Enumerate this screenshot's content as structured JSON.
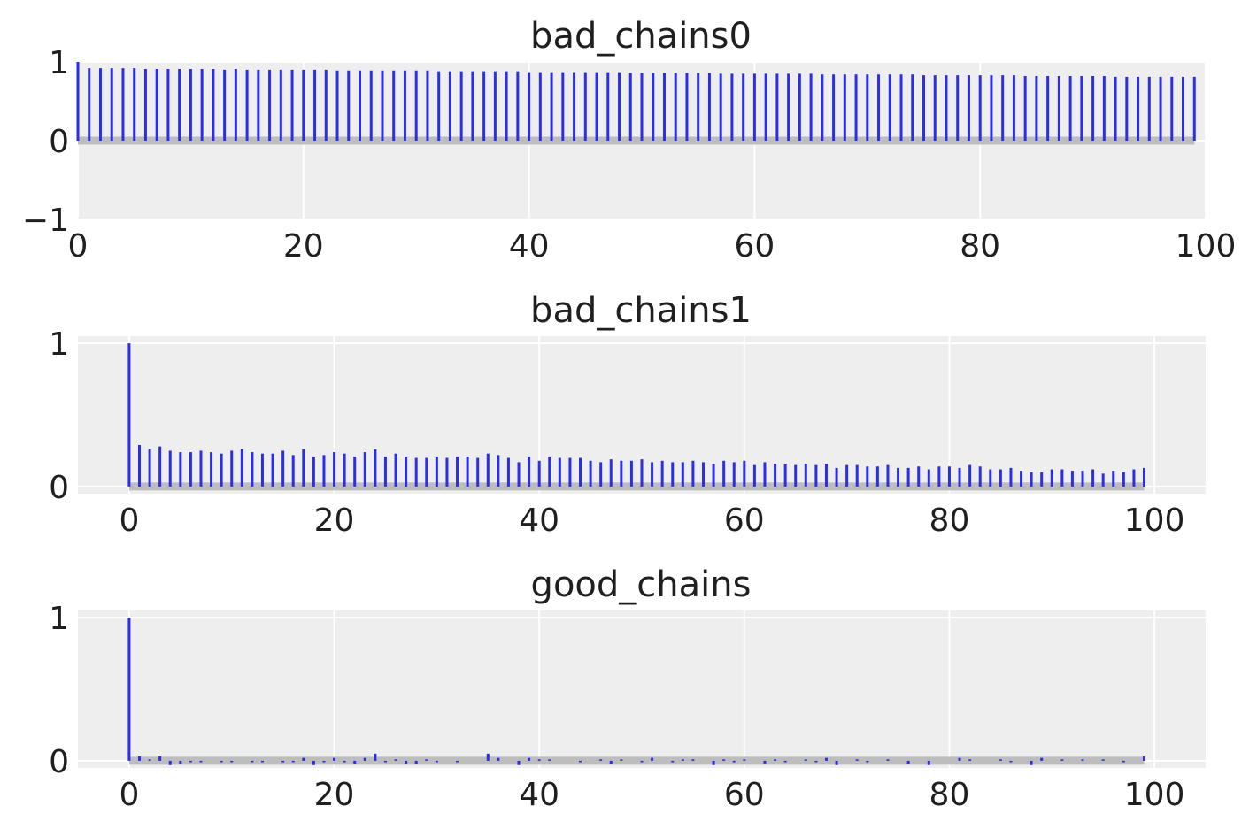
{
  "chart_data": [
    {
      "type": "bar",
      "title": "bad_chains0",
      "xlabel": "",
      "ylabel": "",
      "xlim": [
        0,
        100
      ],
      "ylim": [
        -1,
        1
      ],
      "xticks": [
        0,
        20,
        40,
        60,
        80,
        100
      ],
      "yticks": [
        -1,
        0,
        1
      ],
      "ytick_labels": [
        "−1",
        "0",
        "1"
      ],
      "grid": true,
      "lag_start": 0,
      "values": [
        1.0,
        0.92,
        0.92,
        0.92,
        0.92,
        0.92,
        0.91,
        0.91,
        0.91,
        0.91,
        0.91,
        0.91,
        0.91,
        0.9,
        0.91,
        0.9,
        0.9,
        0.9,
        0.9,
        0.9,
        0.9,
        0.9,
        0.9,
        0.89,
        0.89,
        0.89,
        0.89,
        0.89,
        0.89,
        0.89,
        0.89,
        0.89,
        0.88,
        0.88,
        0.88,
        0.88,
        0.88,
        0.88,
        0.88,
        0.88,
        0.87,
        0.87,
        0.87,
        0.87,
        0.87,
        0.87,
        0.87,
        0.87,
        0.87,
        0.86,
        0.86,
        0.86,
        0.86,
        0.86,
        0.86,
        0.86,
        0.86,
        0.85,
        0.85,
        0.85,
        0.85,
        0.85,
        0.85,
        0.85,
        0.85,
        0.85,
        0.84,
        0.84,
        0.84,
        0.84,
        0.84,
        0.84,
        0.84,
        0.84,
        0.84,
        0.83,
        0.83,
        0.83,
        0.83,
        0.83,
        0.83,
        0.83,
        0.83,
        0.83,
        0.82,
        0.82,
        0.82,
        0.82,
        0.82,
        0.82,
        0.82,
        0.82,
        0.81,
        0.81,
        0.81,
        0.81,
        0.81,
        0.81,
        0.81,
        0.81
      ]
    },
    {
      "type": "bar",
      "title": "bad_chains1",
      "xlabel": "",
      "ylabel": "",
      "xlim": [
        -5,
        105
      ],
      "ylim": [
        -0.05,
        1.05
      ],
      "xticks": [
        0,
        20,
        40,
        60,
        80,
        100
      ],
      "yticks": [
        0,
        1
      ],
      "ytick_labels": [
        "0",
        "1"
      ],
      "grid": true,
      "lag_start": 0,
      "values": [
        1.0,
        0.29,
        0.26,
        0.28,
        0.25,
        0.24,
        0.24,
        0.25,
        0.24,
        0.23,
        0.25,
        0.26,
        0.24,
        0.23,
        0.23,
        0.25,
        0.22,
        0.26,
        0.21,
        0.22,
        0.24,
        0.23,
        0.21,
        0.24,
        0.26,
        0.21,
        0.23,
        0.21,
        0.2,
        0.2,
        0.21,
        0.2,
        0.21,
        0.21,
        0.2,
        0.23,
        0.22,
        0.2,
        0.17,
        0.21,
        0.18,
        0.21,
        0.2,
        0.2,
        0.2,
        0.18,
        0.17,
        0.19,
        0.18,
        0.18,
        0.19,
        0.17,
        0.18,
        0.17,
        0.17,
        0.18,
        0.17,
        0.16,
        0.18,
        0.17,
        0.18,
        0.15,
        0.17,
        0.16,
        0.16,
        0.15,
        0.16,
        0.15,
        0.16,
        0.13,
        0.15,
        0.15,
        0.14,
        0.14,
        0.15,
        0.13,
        0.13,
        0.14,
        0.12,
        0.14,
        0.14,
        0.13,
        0.15,
        0.14,
        0.12,
        0.12,
        0.13,
        0.11,
        0.1,
        0.1,
        0.12,
        0.12,
        0.11,
        0.11,
        0.12,
        0.09,
        0.11,
        0.1,
        0.12,
        0.13
      ]
    },
    {
      "type": "bar",
      "title": "good_chains",
      "xlabel": "",
      "ylabel": "",
      "xlim": [
        -5,
        105
      ],
      "ylim": [
        -0.05,
        1.05
      ],
      "xticks": [
        0,
        20,
        40,
        60,
        80,
        100
      ],
      "yticks": [
        0,
        1
      ],
      "ytick_labels": [
        "0",
        "1"
      ],
      "grid": true,
      "lag_start": 0,
      "values": [
        1.0,
        0.03,
        0.01,
        0.03,
        -0.03,
        -0.02,
        -0.01,
        -0.01,
        0.0,
        -0.01,
        -0.01,
        0.0,
        -0.01,
        -0.01,
        0.0,
        -0.01,
        -0.01,
        0.02,
        -0.03,
        -0.01,
        0.02,
        -0.01,
        -0.02,
        0.02,
        0.05,
        -0.01,
        0.01,
        -0.02,
        -0.02,
        0.01,
        -0.01,
        0.0,
        -0.01,
        0.0,
        0.0,
        0.05,
        0.02,
        0.0,
        -0.03,
        0.02,
        0.01,
        0.01,
        0.0,
        0.0,
        -0.01,
        0.0,
        0.01,
        -0.02,
        0.01,
        0.0,
        -0.01,
        0.02,
        0.0,
        -0.01,
        0.01,
        0.01,
        0.0,
        -0.03,
        0.01,
        -0.01,
        0.01,
        0.0,
        -0.02,
        0.01,
        -0.01,
        0.0,
        0.01,
        -0.01,
        0.02,
        -0.03,
        0.0,
        0.01,
        -0.01,
        0.0,
        0.01,
        0.0,
        -0.02,
        0.0,
        -0.03,
        0.0,
        0.0,
        0.02,
        0.01,
        0.0,
        0.0,
        0.01,
        -0.01,
        0.0,
        -0.03,
        0.02,
        0.0,
        0.01,
        0.0,
        0.01,
        0.0,
        0.01,
        0.0,
        -0.01,
        0.0,
        0.03
      ]
    }
  ]
}
